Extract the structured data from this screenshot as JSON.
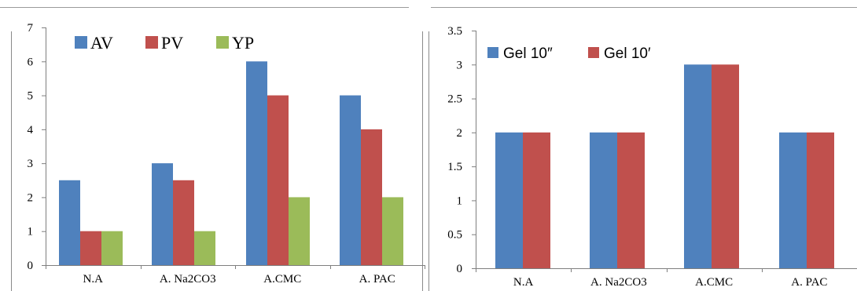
{
  "chart_data": [
    {
      "type": "bar",
      "categories": [
        "N.A",
        "A. Na2CO3",
        "A.CMC",
        "A. PAC"
      ],
      "series": [
        {
          "name": "AV",
          "values": [
            2.5,
            3,
            6,
            5
          ]
        },
        {
          "name": "PV",
          "values": [
            1,
            2.5,
            5,
            4
          ]
        },
        {
          "name": "YP",
          "values": [
            1,
            1,
            2,
            2
          ]
        }
      ],
      "ylim": [
        0,
        7
      ],
      "yticks": [
        "0",
        "1",
        "2",
        "3",
        "4",
        "5",
        "6",
        "7"
      ],
      "legend": "top-left",
      "grid": false,
      "colors": [
        "#4f81bd",
        "#c0504d",
        "#9bbb59"
      ]
    },
    {
      "type": "bar",
      "categories": [
        "N.A",
        "A. Na2CO3",
        "A.CMC",
        "A. PAC"
      ],
      "series": [
        {
          "name": "Gel 10″",
          "values": [
            2,
            2,
            3,
            2
          ]
        },
        {
          "name": "Gel 10′",
          "values": [
            2,
            2,
            3,
            2
          ]
        }
      ],
      "ylim": [
        0,
        3.5
      ],
      "yticks": [
        "0",
        "0.5",
        "1",
        "1.5",
        "2",
        "2.5",
        "3",
        "3.5"
      ],
      "legend": "top-left",
      "grid": false,
      "colors": [
        "#4f81bd",
        "#c0504d"
      ]
    }
  ]
}
